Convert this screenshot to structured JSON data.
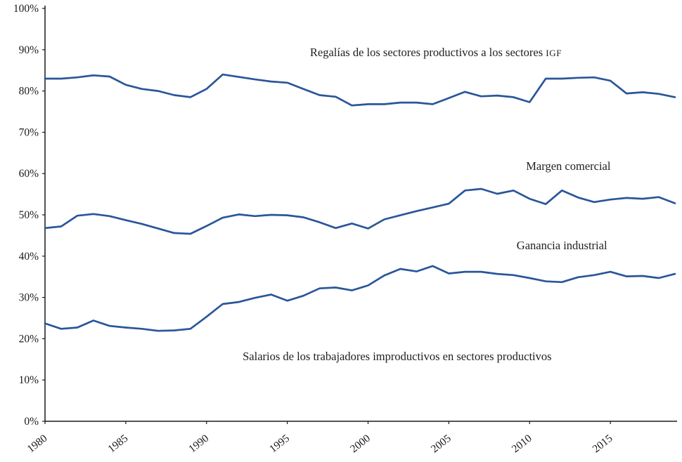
{
  "chart_data": {
    "type": "line",
    "title": "",
    "xlabel": "",
    "ylabel": "",
    "grid": false,
    "line_color": "#2a5699",
    "x_range": [
      1980,
      2019
    ],
    "y_range": [
      0,
      100
    ],
    "x": [
      1980,
      1981,
      1982,
      1983,
      1984,
      1985,
      1986,
      1987,
      1988,
      1989,
      1990,
      1991,
      1992,
      1993,
      1994,
      1995,
      1996,
      1997,
      1998,
      1999,
      2000,
      2001,
      2002,
      2003,
      2004,
      2005,
      2006,
      2007,
      2008,
      2009,
      2010,
      2011,
      2012,
      2013,
      2014,
      2015,
      2016,
      2017,
      2018,
      2019
    ],
    "x_ticks": [
      1980,
      1985,
      1990,
      1995,
      2000,
      2005,
      2010,
      2015
    ],
    "y_ticks": [
      {
        "value": 0,
        "label": "0%"
      },
      {
        "value": 10,
        "label": "10%"
      },
      {
        "value": 20,
        "label": "20%"
      },
      {
        "value": 30,
        "label": "30%"
      },
      {
        "value": 40,
        "label": "40%"
      },
      {
        "value": 50,
        "label": "50%"
      },
      {
        "value": 60,
        "label": "60%"
      },
      {
        "value": 70,
        "label": "70%"
      },
      {
        "value": 80,
        "label": "80%"
      },
      {
        "value": 90,
        "label": "90%"
      },
      {
        "value": 100,
        "label": "100%"
      }
    ],
    "series": [
      {
        "name": "Regalías de los sectores productivos a los sectores IGF",
        "values": [
          83.0,
          83.0,
          83.3,
          83.8,
          83.5,
          81.5,
          80.5,
          80.0,
          79.0,
          78.5,
          80.5,
          84.0,
          83.4,
          82.8,
          82.3,
          82.0,
          80.5,
          79.0,
          78.6,
          76.5,
          76.8,
          76.8,
          77.2,
          77.2,
          76.8,
          78.3,
          79.8,
          78.7,
          78.9,
          78.5,
          77.3,
          83.0,
          83.0,
          83.2,
          83.3,
          82.5,
          79.4,
          79.7,
          79.3,
          78.5
        ]
      },
      {
        "name": "Margen comercial",
        "values": [
          46.8,
          47.2,
          49.8,
          50.2,
          49.7,
          48.7,
          47.8,
          46.7,
          45.6,
          45.4,
          47.3,
          49.3,
          50.1,
          49.7,
          50.0,
          49.9,
          49.4,
          48.2,
          46.8,
          47.9,
          46.7,
          48.9,
          49.9,
          50.9,
          51.8,
          52.7,
          55.9,
          56.3,
          55.1,
          55.9,
          53.9,
          52.6,
          55.9,
          54.2,
          53.1,
          53.7,
          54.1,
          53.9,
          54.3,
          52.8
        ]
      },
      {
        "name": "Ganancia industrial",
        "values": [
          23.7,
          22.4,
          22.7,
          24.4,
          23.1,
          22.7,
          22.4,
          21.9,
          22.0,
          22.4,
          25.3,
          28.4,
          28.9,
          29.9,
          30.7,
          29.2,
          30.4,
          32.2,
          32.4,
          31.7,
          32.9,
          35.3,
          36.9,
          36.3,
          37.6,
          35.8,
          36.2,
          36.2,
          35.7,
          35.4,
          34.7,
          33.9,
          33.7,
          34.9,
          35.4,
          36.2,
          35.1,
          35.2,
          34.7,
          35.7
        ]
      }
    ],
    "annotations": [
      {
        "text": "Regalías de los sectores productivos a los sectores ",
        "suffix": "IGF",
        "x": 2004.2,
        "y": 89.3
      },
      {
        "text": "Margen comercial",
        "x": 2012.4,
        "y": 61.8
      },
      {
        "text": "Ganancia industrial",
        "x": 2012.0,
        "y": 42.6
      },
      {
        "text": "Salarios de los trabajadores improductivos en sectores productivos",
        "x": 2001.8,
        "y": 15.6
      }
    ]
  }
}
